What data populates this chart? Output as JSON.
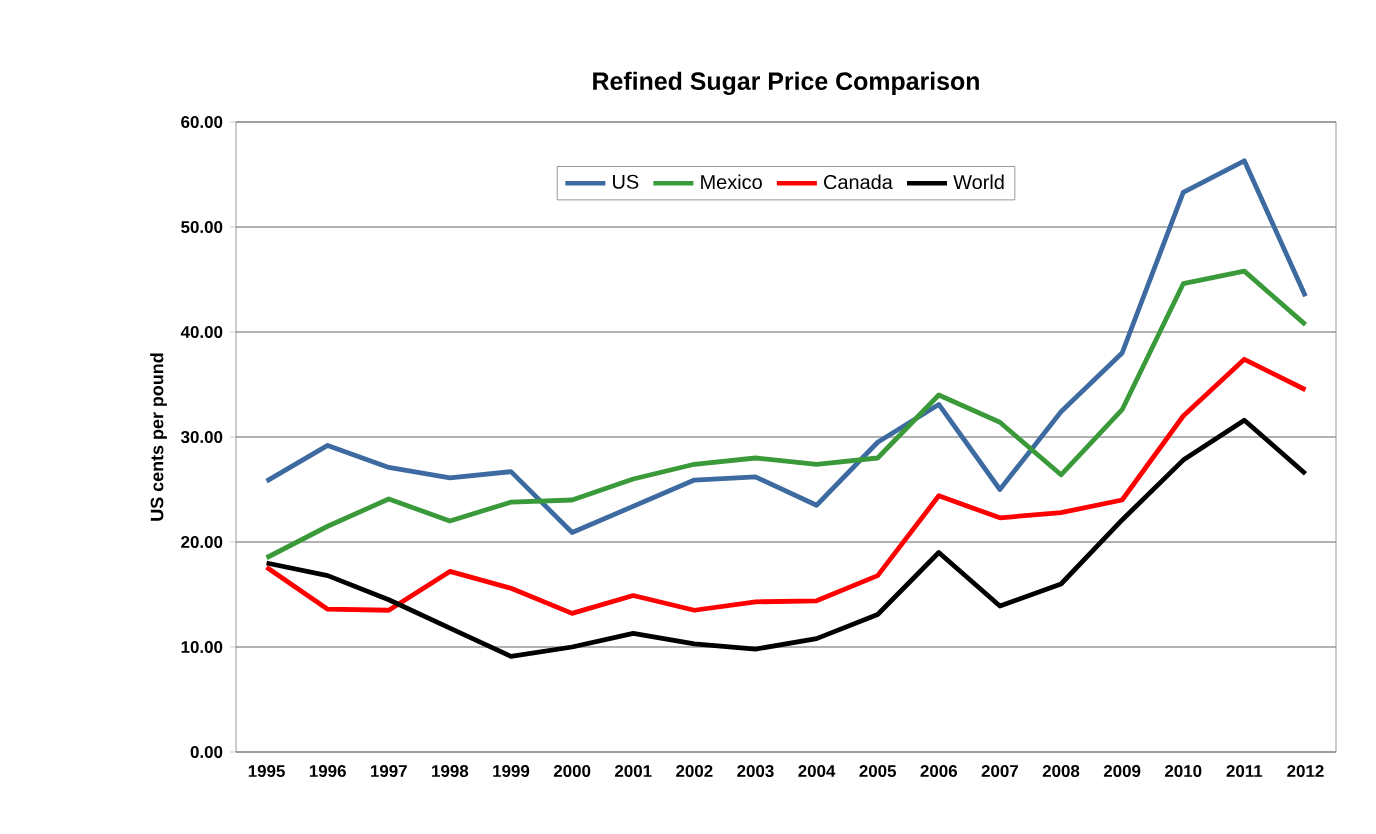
{
  "chart_data": {
    "type": "line",
    "title": "Refined Sugar Price Comparison",
    "ylabel": "US cents per pound",
    "categories": [
      "1995",
      "1996",
      "1997",
      "1998",
      "1999",
      "2000",
      "2001",
      "2002",
      "2003",
      "2004",
      "2005",
      "2006",
      "2007",
      "2008",
      "2009",
      "2010",
      "2011",
      "2012"
    ],
    "series": [
      {
        "name": "US",
        "color": "#3d6aa0",
        "values": [
          25.8,
          29.2,
          27.1,
          26.1,
          26.7,
          20.9,
          23.4,
          25.9,
          26.2,
          23.5,
          29.5,
          33.1,
          25.0,
          32.4,
          38.0,
          53.3,
          56.3,
          43.4
        ]
      },
      {
        "name": "Mexico",
        "color": "#3a9a3a",
        "values": [
          18.5,
          21.5,
          24.1,
          22.0,
          23.8,
          24.0,
          26.0,
          27.4,
          28.0,
          27.4,
          28.0,
          34.0,
          31.4,
          26.4,
          32.6,
          44.6,
          45.8,
          40.7
        ]
      },
      {
        "name": "Canada",
        "color": "#ff0000",
        "values": [
          17.6,
          13.6,
          13.5,
          17.2,
          15.6,
          13.2,
          14.9,
          13.5,
          14.3,
          14.4,
          16.8,
          24.4,
          22.3,
          22.8,
          24.0,
          32.0,
          37.4,
          34.5
        ]
      },
      {
        "name": "World",
        "color": "#000000",
        "values": [
          18.0,
          16.8,
          14.5,
          11.8,
          9.1,
          10.0,
          11.3,
          10.3,
          9.8,
          10.8,
          13.1,
          19.0,
          13.9,
          16.0,
          22.1,
          27.8,
          31.6,
          26.5
        ]
      }
    ],
    "ylim": [
      0,
      60
    ],
    "yticks": [
      {
        "value": 0,
        "label": "0.00"
      },
      {
        "value": 10,
        "label": "10.00"
      },
      {
        "value": 20,
        "label": "20.00"
      },
      {
        "value": 30,
        "label": "30.00"
      },
      {
        "value": 40,
        "label": "40.00"
      },
      {
        "value": 50,
        "label": "50.00"
      },
      {
        "value": 60,
        "label": "60.00"
      }
    ],
    "grid": "y",
    "legend": "top",
    "marker": "none",
    "line_style": "solid"
  }
}
